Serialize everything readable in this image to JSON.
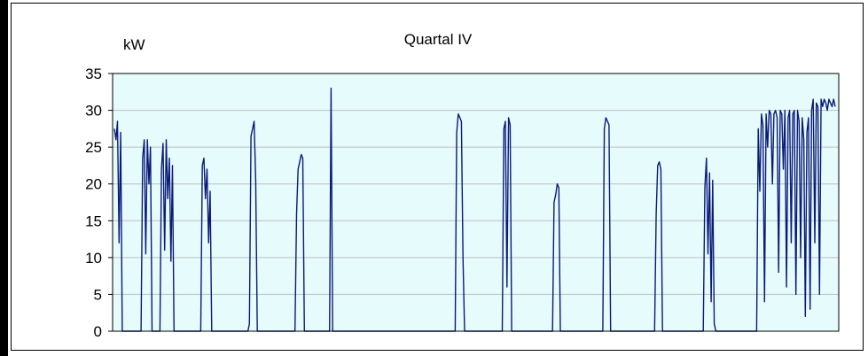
{
  "chart_data": {
    "type": "line",
    "title": "Quartal IV",
    "ylabel": "kW",
    "xlabel": "",
    "ylim": [
      0,
      35
    ],
    "yticks": [
      0,
      5,
      10,
      15,
      20,
      25,
      30,
      35
    ],
    "grid": true,
    "legend": "none",
    "colors": {
      "line": "#0a1a7a",
      "plot_bg": "#e6fbfb",
      "grid": "#bfbfbf"
    },
    "series": [
      {
        "values": [
          27.5,
          26.0,
          28.5,
          12.0,
          27.0,
          0,
          0,
          0,
          0,
          0,
          0,
          0,
          0,
          0,
          0,
          0,
          0,
          0,
          23.5,
          26.0,
          10.5,
          26.0,
          20.0,
          25.0,
          0,
          0,
          0,
          0,
          0,
          0,
          22.0,
          25.5,
          11.0,
          26.0,
          18.0,
          23.5,
          9.5,
          22.5,
          0,
          0,
          0,
          0,
          0,
          0,
          0,
          0,
          0,
          0,
          0,
          0,
          0,
          0,
          0,
          0,
          0,
          0,
          22.5,
          23.5,
          18.0,
          22.0,
          12.0,
          19.0,
          0,
          0,
          0,
          0,
          0,
          0,
          0,
          0,
          0,
          0,
          0,
          0,
          0,
          0,
          0,
          0,
          0,
          0,
          0,
          0,
          0,
          0,
          0,
          0,
          1.0,
          26.5,
          27.5,
          28.5,
          20.5,
          0,
          0,
          0,
          0,
          0,
          0,
          0,
          0,
          0,
          0,
          0,
          0,
          0,
          0,
          0,
          0,
          0,
          0,
          0,
          0,
          0,
          0,
          0,
          0,
          0,
          16.0,
          22.0,
          23.0,
          24.0,
          23.5,
          0,
          0,
          0,
          0,
          0,
          0,
          0,
          0,
          0,
          0,
          0,
          0,
          0,
          0,
          0,
          0,
          0,
          33.0,
          0,
          0,
          0,
          0,
          0,
          0,
          0,
          0,
          0,
          0,
          0,
          0,
          0,
          0,
          0,
          0,
          0,
          0,
          0,
          0,
          0,
          0,
          0,
          0,
          0,
          0,
          0,
          0,
          0,
          0,
          0,
          0,
          0,
          0,
          0,
          0,
          0,
          0,
          0,
          0,
          0,
          0,
          0,
          0,
          0,
          0,
          0,
          0,
          0,
          0,
          0,
          0,
          0,
          0,
          0,
          0,
          0,
          0,
          0,
          0,
          0,
          0,
          0,
          0,
          0,
          0,
          0,
          0,
          0,
          0,
          0,
          0,
          0,
          0,
          0,
          0,
          0,
          0,
          0,
          27.0,
          29.5,
          29.0,
          28.5,
          10.0,
          0,
          0,
          0,
          0,
          0,
          0,
          0,
          0,
          0,
          0,
          0,
          0,
          0,
          0,
          0,
          0,
          0,
          0,
          0,
          0,
          0,
          0,
          0,
          0,
          0,
          27.5,
          28.5,
          6.0,
          29.0,
          28.0,
          0,
          0,
          0,
          0,
          0,
          0,
          0,
          0,
          0,
          0,
          0,
          0,
          0,
          0,
          0,
          0,
          0,
          0,
          0,
          0,
          0,
          0,
          0,
          0,
          0,
          0,
          0,
          17.5,
          18.5,
          20.0,
          19.5,
          0,
          0,
          0,
          0,
          0,
          0,
          0,
          0,
          0,
          0,
          0,
          0,
          0,
          0,
          0,
          0,
          0,
          0,
          0,
          0,
          0,
          0,
          0,
          0,
          0,
          0,
          0,
          0,
          27.5,
          29.0,
          28.5,
          28.0,
          0,
          0,
          0,
          0,
          0,
          0,
          0,
          0,
          0,
          0,
          0,
          0,
          0,
          0,
          0,
          0,
          0,
          0,
          0,
          0,
          0,
          0,
          0,
          0,
          0,
          0,
          0,
          0,
          0,
          16.0,
          22.5,
          23.0,
          22.0,
          0,
          0,
          0,
          0,
          0,
          0,
          0,
          0,
          0,
          0,
          0,
          0,
          0,
          0,
          0,
          0,
          0,
          0,
          0,
          0,
          0,
          0,
          0,
          0,
          0,
          0,
          0,
          19.5,
          23.5,
          10.5,
          21.5,
          4.0,
          20.5,
          1.0,
          0,
          0,
          0,
          0,
          0,
          0,
          0,
          0,
          0,
          0,
          0,
          0,
          0,
          0,
          0,
          0,
          0,
          0,
          0,
          0,
          0,
          0,
          0,
          0,
          0,
          0,
          0,
          27.5,
          19.0,
          29.5,
          28.0,
          4.0,
          29.5,
          25.0,
          30.0,
          29.5,
          20.0,
          29.5,
          30.0,
          29.0,
          8.0,
          30.0,
          29.5,
          22.0,
          30.0,
          6.0,
          29.0,
          30.0,
          12.0,
          29.5,
          30.0,
          5.0,
          30.0,
          28.5,
          10.0,
          29.0,
          26.0,
          2.0,
          27.0,
          29.0,
          3.0,
          30.0,
          31.5,
          12.0,
          31.0,
          30.5,
          5.0,
          31.5,
          30.5,
          31.5,
          31.0,
          30.0,
          31.5,
          31.0,
          30.5,
          31.5,
          30.5
        ]
      }
    ]
  }
}
